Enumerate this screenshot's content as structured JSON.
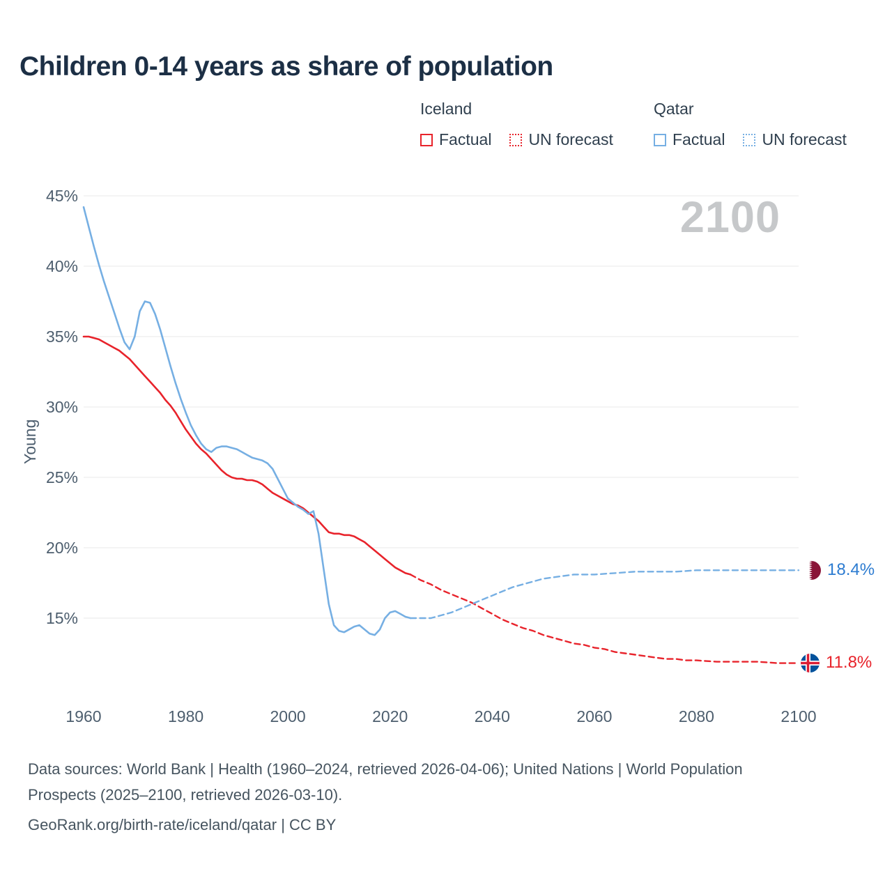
{
  "title": "Children 0-14 years as share of population",
  "watermark": "2100",
  "legend": {
    "groups": [
      {
        "country": "Iceland",
        "items": [
          {
            "label": "Factual",
            "style": "solid"
          },
          {
            "label": "UN forecast",
            "style": "dotted"
          }
        ]
      },
      {
        "country": "Qatar",
        "items": [
          {
            "label": "Factual",
            "style": "solid"
          },
          {
            "label": "UN forecast",
            "style": "dotted"
          }
        ]
      }
    ]
  },
  "colors": {
    "iceland_red": "#e8232b",
    "qatar_blue": "#76afe3",
    "qatar_label_blue": "#2d7cd1",
    "title_navy": "#1c2f45",
    "legend_text": "#2f3f4e",
    "axis_text": "#4d5e6e",
    "gridline": "#e8e8e8",
    "watermark_gray": "#c6c8ca",
    "footer_text": "#46545f",
    "qatar_flag_maroon": "#8a1538",
    "iceland_flag_blue": "#02529c",
    "iceland_flag_red": "#dc1e35"
  },
  "end_labels": {
    "qatar": "18.4%",
    "iceland": "11.8%"
  },
  "footer": {
    "sources": "Data sources: World Bank | Health (1960–2024, retrieved 2026-04-06); United Nations | World Population Prospects (2025–2100, retrieved 2026-03-10).",
    "attribution": "GeoRank.org/birth-rate/iceland/qatar | CC BY"
  },
  "chart_data": {
    "type": "line",
    "title": "Children 0-14 years as share of population",
    "xlabel": "",
    "ylabel": "Young",
    "x_range": [
      1960,
      2100
    ],
    "ylim_percent": [
      11,
      45
    ],
    "grid": true,
    "legend_position": "top-right",
    "y_ticks": [
      {
        "value": 45,
        "label": "45%"
      },
      {
        "value": 40,
        "label": "40%"
      },
      {
        "value": 35,
        "label": "35%"
      },
      {
        "value": 30,
        "label": "30%"
      },
      {
        "value": 25,
        "label": "25%"
      },
      {
        "value": 20,
        "label": "20%"
      },
      {
        "value": 15,
        "label": "15%"
      }
    ],
    "x_ticks": [
      {
        "value": 1960,
        "label": "1960"
      },
      {
        "value": 1980,
        "label": "1980"
      },
      {
        "value": 2000,
        "label": "2000"
      },
      {
        "value": 2020,
        "label": "2020"
      },
      {
        "value": 2040,
        "label": "2040"
      },
      {
        "value": 2060,
        "label": "2060"
      },
      {
        "value": 2080,
        "label": "2080"
      },
      {
        "value": 2100,
        "label": "2100"
      }
    ],
    "series": [
      {
        "id": "iceland-factual",
        "name": "Iceland Factual",
        "color_key": "iceland_red",
        "style": "solid",
        "points": [
          [
            1960,
            35.0
          ],
          [
            1961,
            35.0
          ],
          [
            1962,
            34.9
          ],
          [
            1963,
            34.8
          ],
          [
            1964,
            34.6
          ],
          [
            1965,
            34.4
          ],
          [
            1966,
            34.2
          ],
          [
            1967,
            34.0
          ],
          [
            1968,
            33.7
          ],
          [
            1969,
            33.4
          ],
          [
            1970,
            33.0
          ],
          [
            1971,
            32.6
          ],
          [
            1972,
            32.2
          ],
          [
            1973,
            31.8
          ],
          [
            1974,
            31.4
          ],
          [
            1975,
            31.0
          ],
          [
            1976,
            30.5
          ],
          [
            1977,
            30.1
          ],
          [
            1978,
            29.6
          ],
          [
            1979,
            29.0
          ],
          [
            1980,
            28.4
          ],
          [
            1981,
            27.9
          ],
          [
            1982,
            27.4
          ],
          [
            1983,
            27.0
          ],
          [
            1984,
            26.7
          ],
          [
            1985,
            26.3
          ],
          [
            1986,
            25.9
          ],
          [
            1987,
            25.5
          ],
          [
            1988,
            25.2
          ],
          [
            1989,
            25.0
          ],
          [
            1990,
            24.9
          ],
          [
            1991,
            24.9
          ],
          [
            1992,
            24.8
          ],
          [
            1993,
            24.8
          ],
          [
            1994,
            24.7
          ],
          [
            1995,
            24.5
          ],
          [
            1996,
            24.2
          ],
          [
            1997,
            23.9
          ],
          [
            1998,
            23.7
          ],
          [
            1999,
            23.5
          ],
          [
            2000,
            23.3
          ],
          [
            2001,
            23.1
          ],
          [
            2002,
            23.0
          ],
          [
            2003,
            22.8
          ],
          [
            2004,
            22.5
          ],
          [
            2005,
            22.2
          ],
          [
            2006,
            21.9
          ],
          [
            2007,
            21.5
          ],
          [
            2008,
            21.1
          ],
          [
            2009,
            21.0
          ],
          [
            2010,
            21.0
          ],
          [
            2011,
            20.9
          ],
          [
            2012,
            20.9
          ],
          [
            2013,
            20.8
          ],
          [
            2014,
            20.6
          ],
          [
            2015,
            20.4
          ],
          [
            2016,
            20.1
          ],
          [
            2017,
            19.8
          ],
          [
            2018,
            19.5
          ],
          [
            2019,
            19.2
          ],
          [
            2020,
            18.9
          ],
          [
            2021,
            18.6
          ],
          [
            2022,
            18.4
          ],
          [
            2023,
            18.2
          ],
          [
            2024,
            18.1
          ]
        ]
      },
      {
        "id": "iceland-forecast",
        "name": "Iceland UN forecast",
        "color_key": "iceland_red",
        "style": "dashed",
        "points": [
          [
            2024,
            18.1
          ],
          [
            2026,
            17.7
          ],
          [
            2028,
            17.4
          ],
          [
            2030,
            17.0
          ],
          [
            2032,
            16.7
          ],
          [
            2034,
            16.4
          ],
          [
            2036,
            16.1
          ],
          [
            2038,
            15.7
          ],
          [
            2040,
            15.3
          ],
          [
            2042,
            14.9
          ],
          [
            2044,
            14.6
          ],
          [
            2046,
            14.3
          ],
          [
            2048,
            14.1
          ],
          [
            2050,
            13.8
          ],
          [
            2052,
            13.6
          ],
          [
            2054,
            13.4
          ],
          [
            2056,
            13.2
          ],
          [
            2058,
            13.1
          ],
          [
            2060,
            12.9
          ],
          [
            2062,
            12.8
          ],
          [
            2064,
            12.6
          ],
          [
            2066,
            12.5
          ],
          [
            2068,
            12.4
          ],
          [
            2070,
            12.3
          ],
          [
            2072,
            12.2
          ],
          [
            2074,
            12.1
          ],
          [
            2076,
            12.1
          ],
          [
            2078,
            12.0
          ],
          [
            2080,
            12.0
          ],
          [
            2084,
            11.9
          ],
          [
            2088,
            11.9
          ],
          [
            2092,
            11.9
          ],
          [
            2096,
            11.8
          ],
          [
            2100,
            11.8
          ]
        ]
      },
      {
        "id": "qatar-factual",
        "name": "Qatar Factual",
        "color_key": "qatar_blue",
        "style": "solid",
        "points": [
          [
            1960,
            44.2
          ],
          [
            1961,
            42.8
          ],
          [
            1962,
            41.4
          ],
          [
            1963,
            40.1
          ],
          [
            1964,
            38.9
          ],
          [
            1965,
            37.8
          ],
          [
            1966,
            36.7
          ],
          [
            1967,
            35.6
          ],
          [
            1968,
            34.6
          ],
          [
            1969,
            34.1
          ],
          [
            1970,
            35.0
          ],
          [
            1971,
            36.8
          ],
          [
            1972,
            37.5
          ],
          [
            1973,
            37.4
          ],
          [
            1974,
            36.6
          ],
          [
            1975,
            35.5
          ],
          [
            1976,
            34.2
          ],
          [
            1977,
            32.9
          ],
          [
            1978,
            31.7
          ],
          [
            1979,
            30.6
          ],
          [
            1980,
            29.6
          ],
          [
            1981,
            28.7
          ],
          [
            1982,
            28.0
          ],
          [
            1983,
            27.4
          ],
          [
            1984,
            27.0
          ],
          [
            1985,
            26.8
          ],
          [
            1986,
            27.1
          ],
          [
            1987,
            27.2
          ],
          [
            1988,
            27.2
          ],
          [
            1989,
            27.1
          ],
          [
            1990,
            27.0
          ],
          [
            1991,
            26.8
          ],
          [
            1992,
            26.6
          ],
          [
            1993,
            26.4
          ],
          [
            1994,
            26.3
          ],
          [
            1995,
            26.2
          ],
          [
            1996,
            26.0
          ],
          [
            1997,
            25.6
          ],
          [
            1998,
            24.9
          ],
          [
            1999,
            24.2
          ],
          [
            2000,
            23.5
          ],
          [
            2001,
            23.2
          ],
          [
            2002,
            22.9
          ],
          [
            2003,
            22.7
          ],
          [
            2004,
            22.4
          ],
          [
            2005,
            22.6
          ],
          [
            2006,
            21.0
          ],
          [
            2007,
            18.5
          ],
          [
            2008,
            16.0
          ],
          [
            2009,
            14.5
          ],
          [
            2010,
            14.1
          ],
          [
            2011,
            14.0
          ],
          [
            2012,
            14.2
          ],
          [
            2013,
            14.4
          ],
          [
            2014,
            14.5
          ],
          [
            2015,
            14.2
          ],
          [
            2016,
            13.9
          ],
          [
            2017,
            13.8
          ],
          [
            2018,
            14.2
          ],
          [
            2019,
            15.0
          ],
          [
            2020,
            15.4
          ],
          [
            2021,
            15.5
          ],
          [
            2022,
            15.3
          ],
          [
            2023,
            15.1
          ],
          [
            2024,
            15.0
          ]
        ]
      },
      {
        "id": "qatar-forecast",
        "name": "Qatar UN forecast",
        "color_key": "qatar_blue",
        "style": "dashed",
        "points": [
          [
            2024,
            15.0
          ],
          [
            2026,
            15.0
          ],
          [
            2028,
            15.0
          ],
          [
            2030,
            15.2
          ],
          [
            2032,
            15.4
          ],
          [
            2034,
            15.7
          ],
          [
            2036,
            16.0
          ],
          [
            2038,
            16.3
          ],
          [
            2040,
            16.6
          ],
          [
            2042,
            16.9
          ],
          [
            2044,
            17.2
          ],
          [
            2046,
            17.4
          ],
          [
            2048,
            17.6
          ],
          [
            2050,
            17.8
          ],
          [
            2052,
            17.9
          ],
          [
            2054,
            18.0
          ],
          [
            2056,
            18.1
          ],
          [
            2058,
            18.1
          ],
          [
            2060,
            18.1
          ],
          [
            2064,
            18.2
          ],
          [
            2068,
            18.3
          ],
          [
            2072,
            18.3
          ],
          [
            2076,
            18.3
          ],
          [
            2080,
            18.4
          ],
          [
            2085,
            18.4
          ],
          [
            2090,
            18.4
          ],
          [
            2095,
            18.4
          ],
          [
            2100,
            18.4
          ]
        ]
      }
    ]
  }
}
